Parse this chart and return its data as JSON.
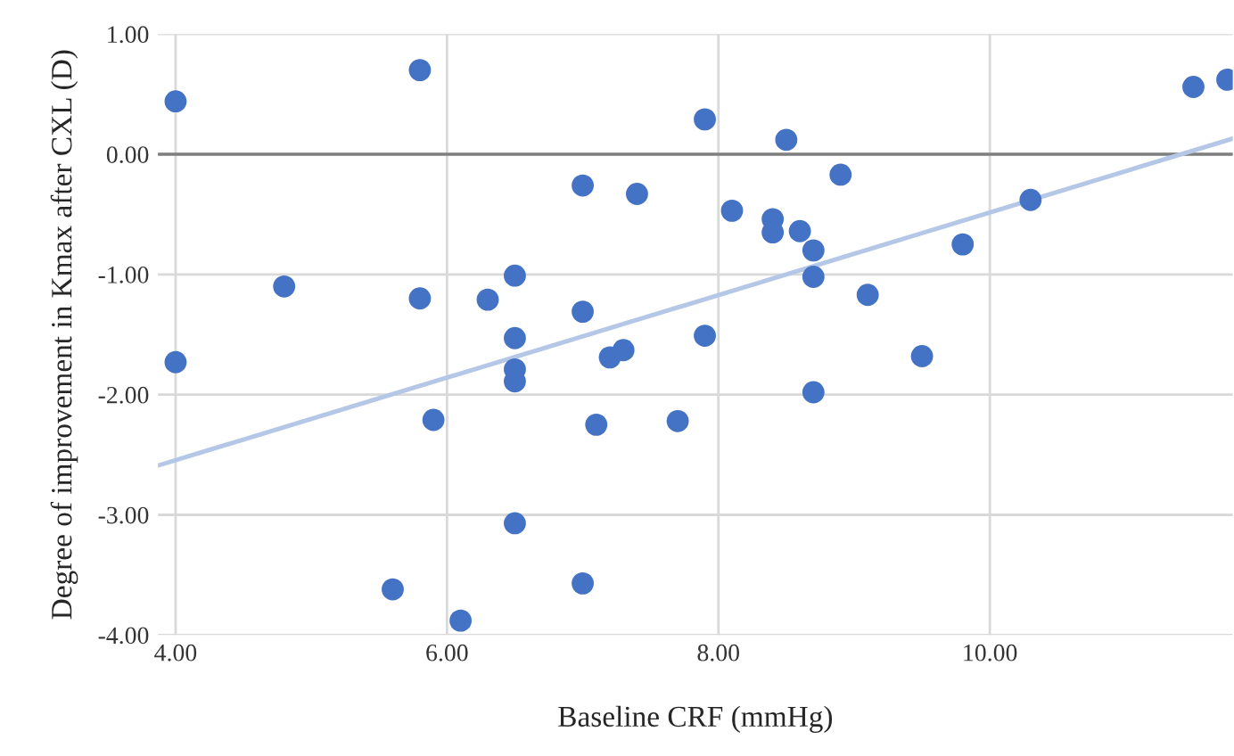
{
  "chart_data": {
    "type": "scatter",
    "xlabel": "Baseline CRF (mmHg)",
    "ylabel": "Degree of improvement in Kmax after CXL (D)",
    "series": [
      {
        "marker": "circle",
        "color": "#4472c4",
        "x": [
          4.0,
          5.8,
          7.0,
          7.4,
          4.8,
          5.8,
          6.3,
          6.5,
          7.0,
          6.5,
          7.2,
          7.3,
          4.0,
          6.5,
          6.5,
          5.9,
          7.1,
          7.7,
          6.5,
          5.6,
          7.0,
          6.1,
          7.9,
          8.5,
          8.9,
          8.1,
          8.4,
          8.4,
          8.6,
          8.7,
          8.7,
          9.1,
          7.9,
          9.5,
          8.7,
          9.8,
          10.3,
          11.5,
          11.75
        ],
        "values": [
          0.44,
          0.7,
          -0.26,
          -0.33,
          -1.1,
          -1.2,
          -1.21,
          -1.01,
          -1.31,
          -1.53,
          -1.69,
          -1.63,
          -1.73,
          -1.79,
          -1.89,
          -2.21,
          -2.25,
          -2.22,
          -3.07,
          -3.62,
          -3.57,
          -3.88,
          0.29,
          0.12,
          -0.17,
          -0.47,
          -0.54,
          -0.65,
          -0.64,
          -0.8,
          -1.02,
          -1.17,
          -1.51,
          -1.68,
          -1.98,
          -0.75,
          -0.38,
          0.56,
          0.62
        ]
      },
      {
        "type": "line",
        "marker": "none",
        "color": "#b4c7e7",
        "x": [
          3.87,
          11.79
        ],
        "values": [
          -2.59,
          0.13
        ]
      }
    ],
    "xlim": [
      3.87,
      11.79
    ],
    "xticks": [
      {
        "value": 4,
        "label": "4.00"
      },
      {
        "value": 6,
        "label": "6.00"
      },
      {
        "value": 8,
        "label": "8.00"
      },
      {
        "value": 10,
        "label": "10.00"
      }
    ],
    "ylim": [
      -4,
      1
    ],
    "yticks": [
      {
        "value": -4,
        "label": "-4.00"
      },
      {
        "value": -3,
        "label": "-3.00"
      },
      {
        "value": -2,
        "label": "-2.00"
      },
      {
        "value": -1,
        "label": "-1.00"
      },
      {
        "value": 0,
        "label": "0.00"
      },
      {
        "value": 1,
        "label": "1.00"
      }
    ],
    "ref_lines": [
      {
        "axis": "y",
        "value": 0,
        "color": "#7f7f7f"
      }
    ],
    "grid": true
  }
}
